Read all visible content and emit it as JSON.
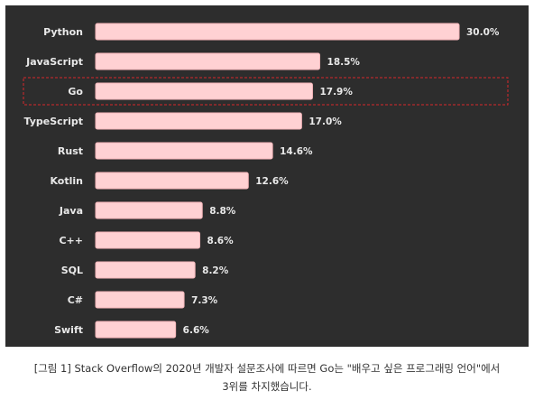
{
  "chart_data": {
    "type": "bar",
    "orientation": "horizontal",
    "categories": [
      "Python",
      "JavaScript",
      "Go",
      "TypeScript",
      "Rust",
      "Kotlin",
      "Java",
      "C++",
      "SQL",
      "C#",
      "Swift"
    ],
    "values": [
      30.0,
      18.5,
      17.9,
      17.0,
      14.6,
      12.6,
      8.8,
      8.6,
      8.2,
      7.3,
      6.6
    ],
    "value_labels": [
      "30.0%",
      "18.5%",
      "17.9%",
      "17.0%",
      "14.6%",
      "12.6%",
      "8.8%",
      "8.6%",
      "8.2%",
      "7.3%",
      "6.6%"
    ],
    "highlighted_category": "Go",
    "xlim": [
      0,
      30
    ],
    "grid": false,
    "legend": "none",
    "colors": {
      "background": "#2d2d2d",
      "bar_fill": "#ffd1d3",
      "bar_border": "#f5b5b9",
      "text": "#e9e9e9",
      "highlight": "#d8272b"
    }
  },
  "caption": {
    "line1": "[그림 1] Stack Overflow의 2020년 개발자 설문조사에 따르면 Go는 \"배우고 싶은 프로그래밍 언어\"에서",
    "line2": "3위를 차지했습니다."
  }
}
